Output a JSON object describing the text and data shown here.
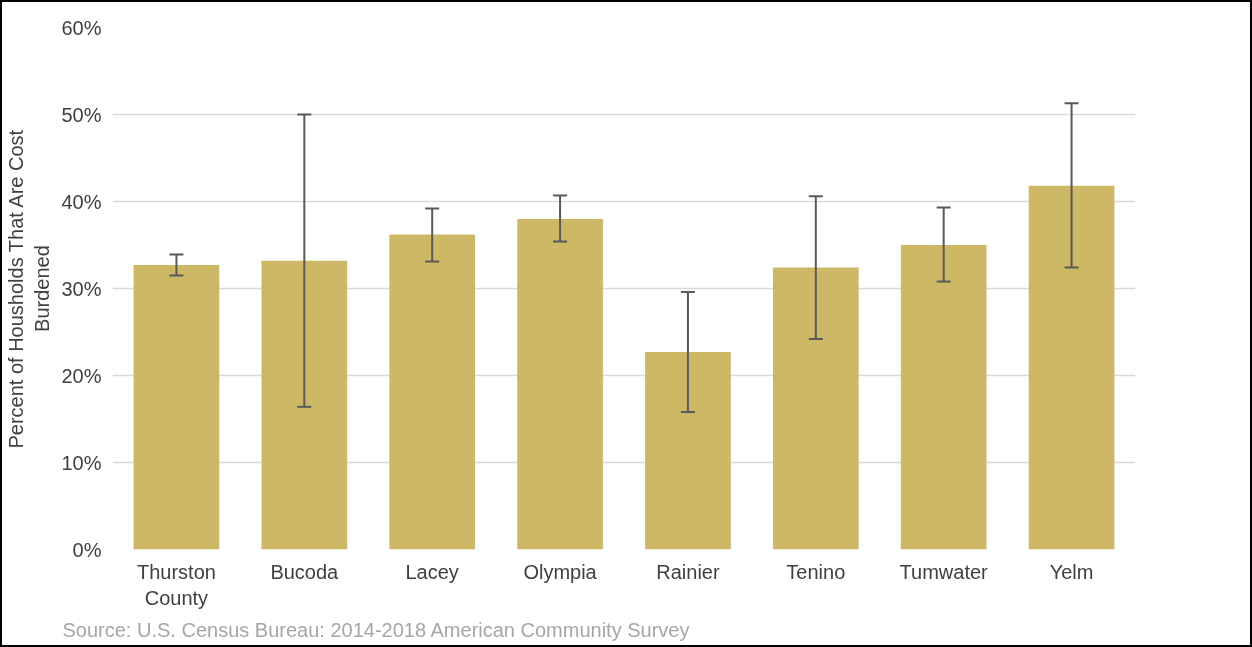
{
  "chart_data": {
    "type": "bar",
    "ylabel": "Percent of Housholds That Are Cost Burdened",
    "categories": [
      "Thurston County",
      "Bucoda",
      "Lacey",
      "Olympia",
      "Rainier",
      "Tenino",
      "Tumwater",
      "Yelm"
    ],
    "values": [
      32.7,
      33.2,
      36.2,
      38.0,
      22.7,
      32.4,
      35.0,
      41.8
    ],
    "errors": [
      [
        31.5,
        33.9
      ],
      [
        16.4,
        50.0
      ],
      [
        33.1,
        39.2
      ],
      [
        35.4,
        40.7
      ],
      [
        15.8,
        29.6
      ],
      [
        24.2,
        40.6
      ],
      [
        30.8,
        39.3
      ],
      [
        32.4,
        51.3
      ]
    ],
    "color": "#cdb865",
    "ylim": [
      0,
      60
    ],
    "yticks": [
      {
        "value": 0,
        "label": "0%"
      },
      {
        "value": 10,
        "label": "10%"
      },
      {
        "value": 20,
        "label": "20%"
      },
      {
        "value": 30,
        "label": "30%"
      },
      {
        "value": 40,
        "label": "40%"
      },
      {
        "value": 50,
        "label": "50%"
      },
      {
        "value": 60,
        "label": "60%"
      }
    ],
    "grid": "y",
    "annotations": [
      "Source: U.S. Census Bureau: 2014-2018 American Community Survey"
    ]
  }
}
